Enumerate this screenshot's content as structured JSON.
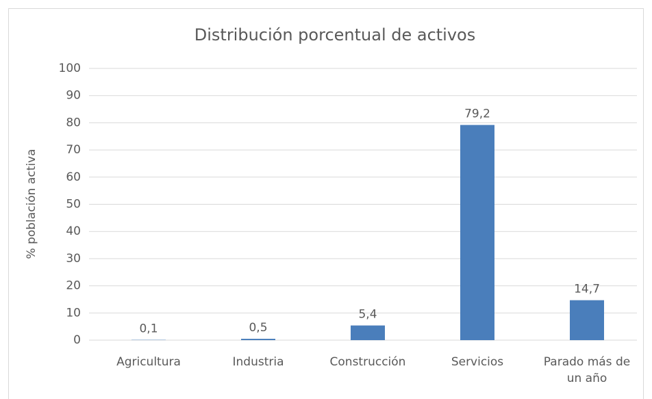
{
  "chart_data": {
    "type": "bar",
    "title": "Distribución porcentual de activos",
    "y_label": "% población activa",
    "categories": [
      "Agricultura",
      "Industria",
      "Construcción",
      "Servicios",
      "Parado más de un año"
    ],
    "values": [
      0.1,
      0.5,
      5.4,
      79.2,
      14.7
    ],
    "value_labels": [
      "0,1",
      "0,5",
      "5,4",
      "79,2",
      "14,7"
    ],
    "color": "#4a7ebb",
    "ylim": [
      0,
      100
    ],
    "yticks": [
      0,
      10,
      20,
      30,
      40,
      50,
      60,
      70,
      80,
      90,
      100
    ],
    "grid": true
  }
}
